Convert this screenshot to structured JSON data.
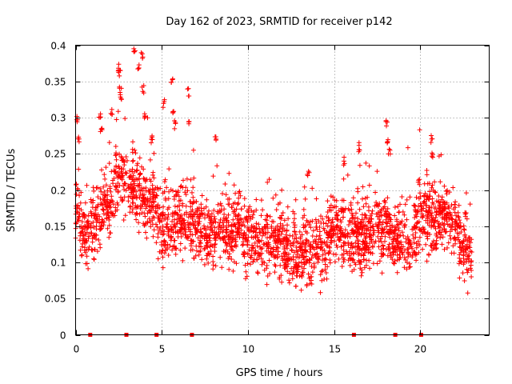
{
  "chart_data": {
    "type": "scatter",
    "title": "Day 162 of 2023, SRMTID for receiver p142",
    "xlabel": "GPS time / hours",
    "ylabel": "SRMTID / TECUs",
    "xlim": [
      0,
      24
    ],
    "ylim": [
      0,
      0.4
    ],
    "x_ticks": [
      0,
      5,
      10,
      15,
      20
    ],
    "x_tick_labels": [
      "0",
      "5",
      "10",
      "15",
      "20"
    ],
    "y_ticks": [
      0,
      0.05,
      0.1,
      0.15,
      0.2,
      0.25,
      0.3,
      0.35,
      0.4
    ],
    "y_tick_labels": [
      "0",
      "0.05",
      "0.1",
      "0.15",
      "0.2",
      "0.25",
      "0.3",
      "0.35",
      "0.4"
    ],
    "grid": true,
    "marker": "+",
    "series_color": "#ff0000",
    "zero_markers_x": [
      0.85,
      2.95,
      4.7,
      6.75,
      16.15,
      18.55,
      20.05
    ],
    "series": [
      {
        "name": "SRMTID",
        "profile": [
          {
            "x": 0.0,
            "y": 0.17
          },
          {
            "x": 0.5,
            "y": 0.14
          },
          {
            "x": 1.0,
            "y": 0.15
          },
          {
            "x": 1.5,
            "y": 0.17
          },
          {
            "x": 2.0,
            "y": 0.19
          },
          {
            "x": 2.5,
            "y": 0.22
          },
          {
            "x": 3.0,
            "y": 0.21
          },
          {
            "x": 3.5,
            "y": 0.2
          },
          {
            "x": 4.0,
            "y": 0.19
          },
          {
            "x": 4.5,
            "y": 0.18
          },
          {
            "x": 5.0,
            "y": 0.15
          },
          {
            "x": 5.5,
            "y": 0.15
          },
          {
            "x": 6.0,
            "y": 0.16
          },
          {
            "x": 6.5,
            "y": 0.16
          },
          {
            "x": 7.0,
            "y": 0.15
          },
          {
            "x": 7.5,
            "y": 0.14
          },
          {
            "x": 8.0,
            "y": 0.14
          },
          {
            "x": 8.5,
            "y": 0.15
          },
          {
            "x": 9.0,
            "y": 0.14
          },
          {
            "x": 9.5,
            "y": 0.15
          },
          {
            "x": 10.0,
            "y": 0.14
          },
          {
            "x": 10.5,
            "y": 0.13
          },
          {
            "x": 11.0,
            "y": 0.13
          },
          {
            "x": 11.5,
            "y": 0.12
          },
          {
            "x": 12.0,
            "y": 0.13
          },
          {
            "x": 12.5,
            "y": 0.11
          },
          {
            "x": 13.0,
            "y": 0.11
          },
          {
            "x": 13.5,
            "y": 0.12
          },
          {
            "x": 14.0,
            "y": 0.12
          },
          {
            "x": 14.5,
            "y": 0.12
          },
          {
            "x": 15.0,
            "y": 0.15
          },
          {
            "x": 15.5,
            "y": 0.14
          },
          {
            "x": 16.0,
            "y": 0.14
          },
          {
            "x": 16.5,
            "y": 0.13
          },
          {
            "x": 17.0,
            "y": 0.14
          },
          {
            "x": 17.5,
            "y": 0.14
          },
          {
            "x": 18.0,
            "y": 0.15
          },
          {
            "x": 18.5,
            "y": 0.13
          },
          {
            "x": 19.0,
            "y": 0.13
          },
          {
            "x": 19.5,
            "y": 0.13
          },
          {
            "x": 20.0,
            "y": 0.16
          },
          {
            "x": 20.5,
            "y": 0.16
          },
          {
            "x": 21.0,
            "y": 0.16
          },
          {
            "x": 21.5,
            "y": 0.17
          },
          {
            "x": 22.0,
            "y": 0.15
          },
          {
            "x": 22.5,
            "y": 0.12
          },
          {
            "x": 23.0,
            "y": 0.11
          }
        ],
        "highlights": [
          {
            "x": 0.1,
            "y": 0.3
          },
          {
            "x": 0.15,
            "y": 0.27
          },
          {
            "x": 1.4,
            "y": 0.3
          },
          {
            "x": 1.5,
            "y": 0.28
          },
          {
            "x": 2.1,
            "y": 0.31
          },
          {
            "x": 2.5,
            "y": 0.37
          },
          {
            "x": 2.55,
            "y": 0.36
          },
          {
            "x": 2.6,
            "y": 0.34
          },
          {
            "x": 2.65,
            "y": 0.33
          },
          {
            "x": 3.4,
            "y": 0.39
          },
          {
            "x": 3.65,
            "y": 0.37
          },
          {
            "x": 3.85,
            "y": 0.385
          },
          {
            "x": 3.9,
            "y": 0.34
          },
          {
            "x": 4.0,
            "y": 0.3
          },
          {
            "x": 4.4,
            "y": 0.27
          },
          {
            "x": 5.1,
            "y": 0.32
          },
          {
            "x": 5.6,
            "y": 0.35
          },
          {
            "x": 5.7,
            "y": 0.31
          },
          {
            "x": 5.75,
            "y": 0.29
          },
          {
            "x": 6.55,
            "y": 0.335
          },
          {
            "x": 6.6,
            "y": 0.29
          },
          {
            "x": 8.1,
            "y": 0.27
          },
          {
            "x": 13.5,
            "y": 0.22
          },
          {
            "x": 15.55,
            "y": 0.24
          },
          {
            "x": 16.5,
            "y": 0.26
          },
          {
            "x": 18.05,
            "y": 0.29
          },
          {
            "x": 18.1,
            "y": 0.27
          },
          {
            "x": 18.2,
            "y": 0.255
          },
          {
            "x": 19.9,
            "y": 0.21
          },
          {
            "x": 20.65,
            "y": 0.27
          },
          {
            "x": 20.7,
            "y": 0.25
          }
        ]
      }
    ]
  }
}
